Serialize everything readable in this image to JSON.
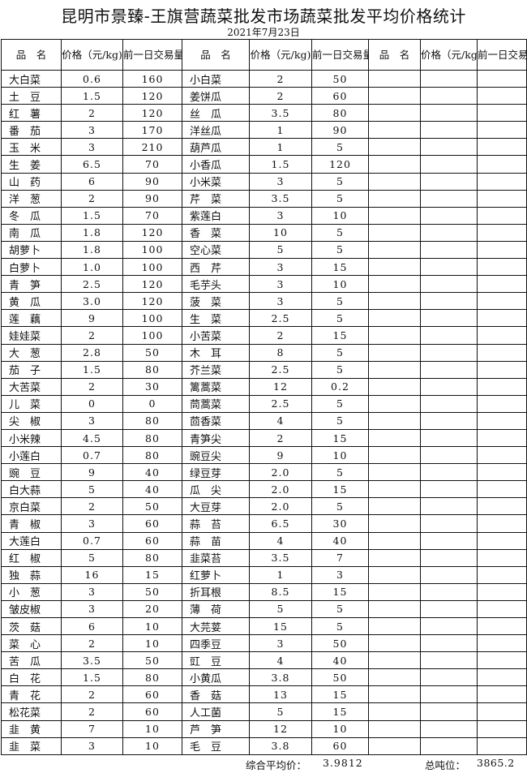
{
  "title": "昆明市景臻-王旗营蔬菜批发市场蔬菜批发平均价格统计",
  "date": "2021年7月23日",
  "headers": {
    "name": "品　名",
    "price": "价格（元/kg)",
    "volume": "前一日交易量(吨)"
  },
  "left": [
    [
      "大白菜",
      "0.6",
      "160"
    ],
    [
      "土　豆",
      "1.5",
      "120"
    ],
    [
      "红　薯",
      "2",
      "120"
    ],
    [
      "番　茄",
      "3",
      "170"
    ],
    [
      "玉　米",
      "3",
      "210"
    ],
    [
      "生　姜",
      "6.5",
      "70"
    ],
    [
      "山　药",
      "6",
      "90"
    ],
    [
      "洋　葱",
      "2",
      "90"
    ],
    [
      "冬　瓜",
      "1.5",
      "70"
    ],
    [
      "南　瓜",
      "1.8",
      "120"
    ],
    [
      "胡萝卜",
      "1.8",
      "100"
    ],
    [
      "白萝卜",
      "1.0",
      "100"
    ],
    [
      "青　笋",
      "2.5",
      "120"
    ],
    [
      "黄　瓜",
      "3.0",
      "120"
    ],
    [
      "莲　藕",
      "9",
      "100"
    ],
    [
      "娃娃菜",
      "2",
      "100"
    ],
    [
      "大　葱",
      "2.8",
      "50"
    ],
    [
      "茄　子",
      "1.5",
      "80"
    ],
    [
      "大苦菜",
      "2",
      "30"
    ],
    [
      "儿　菜",
      "0",
      "0"
    ],
    [
      "尖　椒",
      "3",
      "80"
    ],
    [
      "小米辣",
      "4.5",
      "80"
    ],
    [
      "小莲白",
      "0.7",
      "80"
    ],
    [
      "豌　豆",
      "9",
      "40"
    ],
    [
      "白大蒜",
      "5",
      "40"
    ],
    [
      "京白菜",
      "2",
      "50"
    ],
    [
      "青　椒",
      "3",
      "60"
    ],
    [
      "大莲白",
      "0.7",
      "60"
    ],
    [
      "红　椒",
      "5",
      "80"
    ],
    [
      "独　蒜",
      "16",
      "15"
    ],
    [
      "小　葱",
      "3",
      "50"
    ],
    [
      "皱皮椒",
      "3",
      "20"
    ],
    [
      "茨　菇",
      "6",
      "10"
    ],
    [
      "菜　心",
      "2",
      "10"
    ],
    [
      "苦　瓜",
      "3.5",
      "50"
    ],
    [
      "白　花",
      "1.5",
      "80"
    ],
    [
      "青　花",
      "2",
      "60"
    ],
    [
      "松花菜",
      "2",
      "60"
    ],
    [
      "韭　黄",
      "7",
      "10"
    ],
    [
      "韭　菜",
      "3",
      "10"
    ]
  ],
  "right": [
    [
      "小白菜",
      "2",
      "50"
    ],
    [
      "姜饼瓜",
      "2",
      "60"
    ],
    [
      "丝　瓜",
      "3.5",
      "80"
    ],
    [
      "洋丝瓜",
      "1",
      "90"
    ],
    [
      "葫芦瓜",
      "1",
      "5"
    ],
    [
      "小香瓜",
      "1.5",
      "120"
    ],
    [
      "小米菜",
      "3",
      "5"
    ],
    [
      "芹　菜",
      "3.5",
      "5"
    ],
    [
      "紫莲白",
      "3",
      "10"
    ],
    [
      "香　菜",
      "10",
      "5"
    ],
    [
      "空心菜",
      "5",
      "5"
    ],
    [
      "西　芹",
      "3",
      "15"
    ],
    [
      "毛芋头",
      "3",
      "10"
    ],
    [
      "菠　菜",
      "3",
      "5"
    ],
    [
      "生　菜",
      "2.5",
      "5"
    ],
    [
      "小苦菜",
      "2",
      "15"
    ],
    [
      "木　耳",
      "8",
      "5"
    ],
    [
      "芥兰菜",
      "2.5",
      "5"
    ],
    [
      "篱蒿菜",
      "12",
      "0.2"
    ],
    [
      "茼蒿菜",
      "2.5",
      "5"
    ],
    [
      "茴香菜",
      "4",
      "5"
    ],
    [
      "青笋尖",
      "2",
      "15"
    ],
    [
      "豌豆尖",
      "9",
      "10"
    ],
    [
      "绿豆芽",
      "2.0",
      "5"
    ],
    [
      "瓜　尖",
      "2.0",
      "15"
    ],
    [
      "大豆芽",
      "2.0",
      "5"
    ],
    [
      "蒜　苔",
      "6.5",
      "30"
    ],
    [
      "蒜　苗",
      "4",
      "40"
    ],
    [
      "韭菜苔",
      "3.5",
      "7"
    ],
    [
      "红萝卜",
      "1",
      "3"
    ],
    [
      "折耳根",
      "8.5",
      "15"
    ],
    [
      "薄　荷",
      "5",
      "5"
    ],
    [
      "大芫荽",
      "15",
      "5"
    ],
    [
      "四季豆",
      "3",
      "50"
    ],
    [
      "豇　豆",
      "4",
      "40"
    ],
    [
      "小黄瓜",
      "3.8",
      "50"
    ],
    [
      "香　菇",
      "13",
      "15"
    ],
    [
      "人工菌",
      "5",
      "15"
    ],
    [
      "芦　笋",
      "12",
      "10"
    ],
    [
      "毛　豆",
      "3.8",
      "60"
    ]
  ],
  "footer": {
    "avg_label": "综合平均价：",
    "avg_value": "3.9812",
    "total_label": "总吨位：",
    "total_value": "3865.2"
  }
}
